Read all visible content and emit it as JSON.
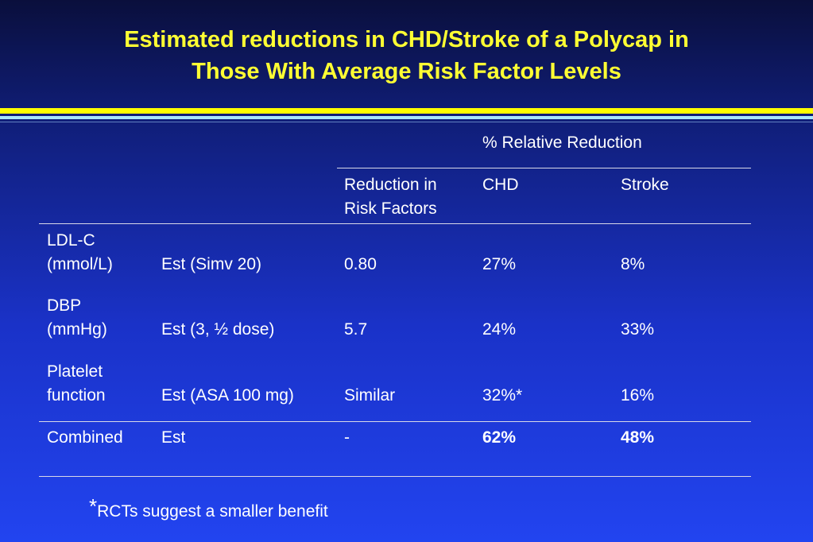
{
  "title": {
    "line1": "Estimated reductions in CHD/Stroke of a Polycap in",
    "line2": "Those With Average Risk Factor Levels"
  },
  "table": {
    "group_header": "% Relative Reduction",
    "col_headers": {
      "reduction_line1": "Reduction in",
      "reduction_line2": "Risk Factors",
      "chd": "CHD",
      "stroke": "Stroke"
    },
    "rows": [
      {
        "label1": "LDL-C",
        "label2": "(mmol/L)",
        "est": "Est (Simv  20)",
        "reduction": "0.80",
        "chd": "27%",
        "stroke": "8%"
      },
      {
        "label1": "DBP",
        "label2": "(mmHg)",
        "est": "Est (3, ½ dose)",
        "reduction": "5.7",
        "chd": "24%",
        "stroke": "33%"
      },
      {
        "label1": "Platelet",
        "label2": "function",
        "est": "Est (ASA  100 mg)",
        "reduction": "Similar",
        "chd": "32%*",
        "stroke": "16%"
      }
    ],
    "combined": {
      "label": "Combined",
      "est": "Est",
      "reduction": "-",
      "chd": "62%",
      "stroke": "48%"
    }
  },
  "footnote": {
    "marker": "*",
    "text": "RCTs suggest a smaller benefit"
  },
  "colors": {
    "title": "#ffff33",
    "text": "#ffffff",
    "background_top": "#0a0f3c",
    "background_bottom": "#2244f0",
    "rule_yellow": "#ffff00",
    "rule_cyan": "#a8e8ff"
  }
}
